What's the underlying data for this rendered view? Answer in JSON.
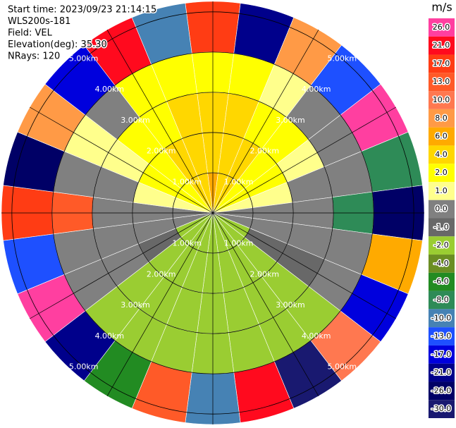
{
  "header": {
    "lines": [
      "Start time: 2023/09/23 21:14:15",
      "WLS200s-181",
      "Field: VEL",
      "Elevation(deg): 35.30",
      "NRays: 120"
    ]
  },
  "chart_data": {
    "type": "ppi",
    "unit": "m/s",
    "rlim": [
      0,
      5.26
    ],
    "range_rings": [
      {
        "value": 1,
        "label": "1.00km"
      },
      {
        "value": 2,
        "label": "2.00km"
      },
      {
        "value": 3,
        "label": "3.00km"
      },
      {
        "value": 4,
        "label": "4.00km"
      },
      {
        "value": 5,
        "label": "5.00km"
      }
    ],
    "colorbar": {
      "ticks": [
        {
          "value": 26,
          "label": "26.0"
        },
        {
          "value": 21,
          "label": "21.0"
        },
        {
          "value": 17,
          "label": "17.0"
        },
        {
          "value": 13,
          "label": "13.0"
        },
        {
          "value": 10,
          "label": "10.0"
        },
        {
          "value": 8,
          "label": "8.0"
        },
        {
          "value": 6,
          "label": "6.0"
        },
        {
          "value": 4,
          "label": "4.0"
        },
        {
          "value": 2,
          "label": "2.0"
        },
        {
          "value": 1,
          "label": "1.0"
        },
        {
          "value": 0,
          "label": "0.0"
        },
        {
          "value": -1,
          "label": "-1.0"
        },
        {
          "value": -2,
          "label": "-2.0"
        },
        {
          "value": -4,
          "label": "-4.0"
        },
        {
          "value": -6,
          "label": "-6.0"
        },
        {
          "value": -8,
          "label": "-8.0"
        },
        {
          "value": -10,
          "label": "-10.0"
        },
        {
          "value": -13,
          "label": "-13.0"
        },
        {
          "value": -17,
          "label": "-17.0"
        },
        {
          "value": -21,
          "label": "-21.0"
        },
        {
          "value": -26,
          "label": "-26.0"
        },
        {
          "value": -30,
          "label": "-30.0"
        }
      ],
      "colors": [
        "#ff3fa0",
        "#ff0a1e",
        "#ff3c14",
        "#ff5a28",
        "#ff7850",
        "#ff9a46",
        "#ffaa00",
        "#ffd700",
        "#ffff00",
        "#ffff8c",
        "#808080",
        "#686868",
        "#9acd32",
        "#6b8e23",
        "#228b22",
        "#2e8b57",
        "#4682b4",
        "#1e50ff",
        "#0000dd",
        "#00008b",
        "#000066",
        "#191970"
      ]
    },
    "field": {
      "azimuths": [
        0,
        15,
        30,
        45,
        60,
        75,
        90,
        105,
        120,
        135,
        150,
        165,
        180,
        195,
        210,
        225,
        240,
        255,
        270,
        285,
        300,
        315,
        330,
        345
      ],
      "range_edges": [
        0,
        1,
        2,
        3,
        4,
        5.26
      ],
      "values": [
        [
          5,
          3,
          3,
          2.5,
          2,
          0.5,
          0.3,
          -0.5,
          -2,
          -2.5,
          -3,
          -3,
          -3,
          -3,
          -3,
          -2.5,
          -2,
          -0.5,
          0.3,
          0.5,
          2,
          2.5,
          3,
          4
        ],
        [
          4,
          3,
          3,
          2.5,
          1.5,
          0.5,
          0.3,
          -0.5,
          -1.5,
          -2.5,
          -3,
          -3,
          -3,
          -3,
          -3,
          -2.5,
          -1.5,
          -0.5,
          0.3,
          0.5,
          1.5,
          2.5,
          3,
          4
        ],
        [
          3,
          3,
          2.5,
          2,
          0.5,
          0.3,
          0.2,
          0.3,
          -1.5,
          -2.5,
          -3,
          -3,
          -3,
          -3,
          -3,
          -2.5,
          -0.5,
          0.3,
          0.2,
          0.3,
          0.5,
          2,
          2.5,
          3
        ],
        [
          2.5,
          2,
          0.5,
          0.3,
          0.2,
          0.4,
          -8,
          0.3,
          -0.5,
          -2.5,
          -2.5,
          -3,
          -3,
          -3,
          -2.5,
          -2.5,
          -0.5,
          0.3,
          13,
          0.3,
          0.5,
          0.3,
          2,
          2.5
        ],
        [
          17,
          -21,
          8,
          -13,
          26,
          -8,
          -26,
          6,
          -17,
          10,
          -30,
          21,
          -10,
          13,
          -6,
          -21,
          26,
          -13,
          17,
          -26,
          8,
          -17,
          21,
          -10
        ]
      ]
    }
  }
}
